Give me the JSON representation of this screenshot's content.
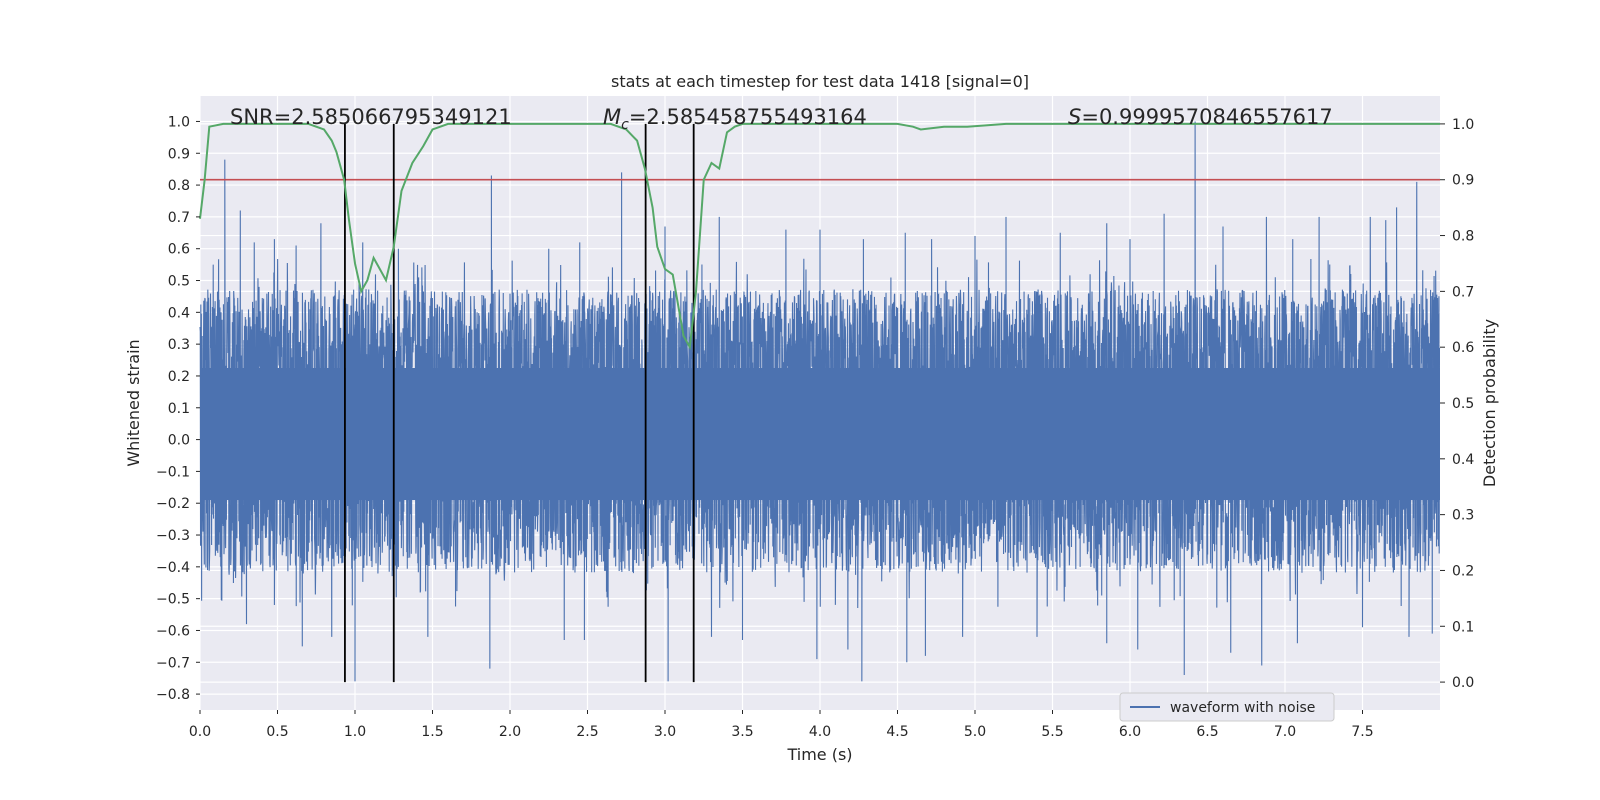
{
  "chart_data": {
    "type": "line",
    "title": "stats at each timestep for test data 1418 [signal=0]",
    "xlabel": "Time (s)",
    "ylabel": "Whitened strain",
    "y2label": "Detection probability",
    "xlim": [
      0.0,
      8.0
    ],
    "ylim": [
      -0.85,
      1.08
    ],
    "y2lim": [
      -0.05,
      1.05
    ],
    "xticks": [
      "0.0",
      "0.5",
      "1.0",
      "1.5",
      "2.0",
      "2.5",
      "3.0",
      "3.5",
      "4.0",
      "4.5",
      "5.0",
      "5.5",
      "6.0",
      "6.5",
      "7.0",
      "7.5"
    ],
    "yticks": [
      "-0.8",
      "-0.7",
      "-0.6",
      "-0.5",
      "-0.4",
      "-0.3",
      "-0.2",
      "-0.1",
      "0.0",
      "0.1",
      "0.2",
      "0.3",
      "0.4",
      "0.5",
      "0.6",
      "0.7",
      "0.8",
      "0.9",
      "1.0"
    ],
    "y2ticks": [
      "0.0",
      "0.1",
      "0.2",
      "0.3",
      "0.4",
      "0.5",
      "0.6",
      "0.7",
      "0.8",
      "0.9",
      "1.0"
    ],
    "grid": true,
    "legend": {
      "position": "lower-right",
      "entries": [
        "waveform with noise"
      ]
    },
    "annotations": {
      "snr": "SNR=2.585066795349121",
      "mc_symbol": "M",
      "mc_subscript": "c",
      "mc_value": "=2.585458755493164",
      "s_symbol": "S",
      "s_value": "=0.9999570846557617"
    },
    "threshold": 0.9,
    "vertical_lines": [
      0.935,
      1.25,
      2.875,
      3.185
    ],
    "waveform": {
      "name": "waveform with noise",
      "color": "#4c72b0",
      "band_upper": 0.45,
      "band_lower": -0.38,
      "peaks": [
        [
          0.16,
          0.88
        ],
        [
          0.26,
          0.72
        ],
        [
          0.35,
          0.62
        ],
        [
          0.48,
          0.63
        ],
        [
          0.62,
          0.61
        ],
        [
          0.78,
          0.68
        ],
        [
          1.05,
          0.62
        ],
        [
          1.28,
          0.6
        ],
        [
          1.88,
          0.83
        ],
        [
          2.25,
          0.6
        ],
        [
          2.45,
          0.62
        ],
        [
          2.72,
          0.84
        ],
        [
          3.0,
          0.67
        ],
        [
          3.35,
          0.7
        ],
        [
          3.78,
          0.66
        ],
        [
          4.0,
          0.66
        ],
        [
          4.28,
          0.63
        ],
        [
          4.55,
          0.65
        ],
        [
          4.72,
          0.63
        ],
        [
          5.0,
          0.64
        ],
        [
          5.2,
          0.7
        ],
        [
          5.55,
          0.65
        ],
        [
          5.85,
          0.68
        ],
        [
          6.0,
          0.63
        ],
        [
          6.22,
          0.71
        ],
        [
          6.42,
          1.0
        ],
        [
          6.6,
          0.67
        ],
        [
          6.88,
          0.7
        ],
        [
          7.05,
          0.63
        ],
        [
          7.22,
          0.7
        ],
        [
          7.55,
          0.7
        ],
        [
          7.65,
          0.69
        ],
        [
          7.72,
          0.73
        ],
        [
          7.85,
          0.81
        ]
      ],
      "troughs": [
        [
          0.3,
          -0.58
        ],
        [
          0.48,
          -0.52
        ],
        [
          0.66,
          -0.65
        ],
        [
          0.85,
          -0.62
        ],
        [
          1.0,
          -0.76
        ],
        [
          1.47,
          -0.62
        ],
        [
          1.87,
          -0.72
        ],
        [
          2.35,
          -0.63
        ],
        [
          2.48,
          -0.63
        ],
        [
          3.02,
          -0.76
        ],
        [
          3.3,
          -0.62
        ],
        [
          3.5,
          -0.63
        ],
        [
          3.98,
          -0.69
        ],
        [
          4.18,
          -0.66
        ],
        [
          4.27,
          -0.76
        ],
        [
          4.56,
          -0.7
        ],
        [
          4.68,
          -0.68
        ],
        [
          4.92,
          -0.62
        ],
        [
          5.4,
          -0.62
        ],
        [
          5.85,
          -0.64
        ],
        [
          6.05,
          -0.66
        ],
        [
          6.35,
          -0.74
        ],
        [
          6.65,
          -0.67
        ],
        [
          6.85,
          -0.71
        ],
        [
          7.08,
          -0.64
        ],
        [
          7.5,
          -0.59
        ],
        [
          7.8,
          -0.62
        ],
        [
          7.95,
          -0.61
        ]
      ]
    },
    "probability": {
      "name": "detection probability",
      "color": "#55a868",
      "x": [
        0.0,
        0.03,
        0.06,
        0.15,
        0.3,
        0.5,
        0.7,
        0.8,
        0.85,
        0.88,
        0.93,
        0.96,
        1.0,
        1.04,
        1.08,
        1.12,
        1.2,
        1.25,
        1.3,
        1.37,
        1.44,
        1.5,
        1.6,
        1.8,
        2.0,
        2.3,
        2.5,
        2.65,
        2.75,
        2.82,
        2.87,
        2.92,
        2.95,
        3.0,
        3.05,
        3.12,
        3.16,
        3.2,
        3.25,
        3.3,
        3.35,
        3.4,
        3.45,
        3.5,
        3.7,
        4.0,
        4.3,
        4.5,
        4.6,
        4.65,
        4.8,
        4.95,
        5.2,
        5.6,
        6.0,
        7.0,
        8.0
      ],
      "y": [
        0.83,
        0.9,
        0.995,
        1.0,
        1.0,
        1.0,
        1.0,
        0.99,
        0.97,
        0.95,
        0.9,
        0.83,
        0.75,
        0.7,
        0.72,
        0.76,
        0.72,
        0.78,
        0.88,
        0.93,
        0.96,
        0.99,
        1.0,
        1.0,
        1.0,
        1.0,
        1.0,
        1.0,
        0.99,
        0.97,
        0.92,
        0.85,
        0.78,
        0.74,
        0.73,
        0.62,
        0.6,
        0.7,
        0.9,
        0.93,
        0.92,
        0.985,
        0.995,
        1.0,
        1.0,
        1.0,
        1.0,
        1.0,
        0.995,
        0.99,
        0.995,
        0.995,
        1.0,
        1.0,
        1.0,
        1.0,
        1.0
      ]
    },
    "colors": {
      "background": "#eaeaf2",
      "grid": "#ffffff",
      "threshold": "#c44e52",
      "vlines": "#000000"
    }
  }
}
